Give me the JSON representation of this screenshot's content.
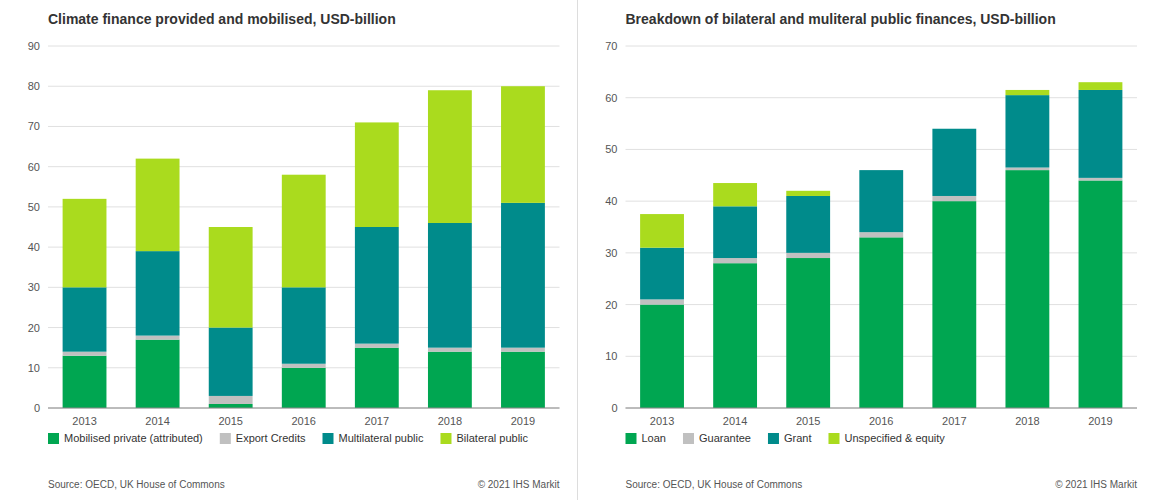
{
  "chart_data": [
    {
      "type": "bar",
      "stacked": true,
      "grid": true,
      "legend": "bottom",
      "title": "Climate finance provided and mobilised, USD-billion",
      "categories": [
        "2013",
        "2014",
        "2015",
        "2016",
        "2017",
        "2018",
        "2019"
      ],
      "series": [
        {
          "name": "Mobilised private (attributed)",
          "color": "#00A651",
          "values": [
            13,
            17,
            1,
            10,
            15,
            14,
            14
          ]
        },
        {
          "name": "Export Credits",
          "color": "#C0C0C0",
          "values": [
            1,
            1,
            2,
            1,
            1,
            1,
            1
          ]
        },
        {
          "name": "Multilateral public",
          "color": "#008B8B",
          "values": [
            16,
            21,
            17,
            19,
            29,
            31,
            36
          ]
        },
        {
          "name": "Bilateral public",
          "color": "#AADB1E",
          "values": [
            22,
            23,
            25,
            28,
            26,
            33,
            29
          ]
        }
      ],
      "ylim": [
        0,
        90
      ],
      "yticks": [
        0,
        10,
        20,
        30,
        40,
        50,
        60,
        70,
        80,
        90
      ],
      "annotations": [
        "Source: OECD, UK House of Commons",
        "© 2021  IHS Markit"
      ]
    },
    {
      "type": "bar",
      "stacked": true,
      "grid": true,
      "legend": "bottom",
      "title": "Breakdown of bilateral and muliteral public finances, USD-billion",
      "categories": [
        "2013",
        "2014",
        "2015",
        "2016",
        "2017",
        "2018",
        "2019"
      ],
      "series": [
        {
          "name": "Loan",
          "color": "#00A651",
          "values": [
            20,
            28,
            29,
            33,
            40,
            46,
            44
          ]
        },
        {
          "name": "Guarantee",
          "color": "#C0C0C0",
          "values": [
            1,
            1,
            1,
            1,
            1,
            0.5,
            0.5
          ]
        },
        {
          "name": "Grant",
          "color": "#008B8B",
          "values": [
            10,
            10,
            11,
            12,
            13,
            14,
            17
          ]
        },
        {
          "name": "Unspecified & equity",
          "color": "#AADB1E",
          "values": [
            6.5,
            4.5,
            1,
            0,
            0,
            1,
            1.5
          ]
        }
      ],
      "ylim": [
        0,
        70
      ],
      "yticks": [
        0,
        10,
        20,
        30,
        40,
        50,
        60,
        70
      ],
      "annotations": [
        "Source: OECD, UK House of Commons",
        "© 2021  IHS Markit"
      ]
    }
  ]
}
